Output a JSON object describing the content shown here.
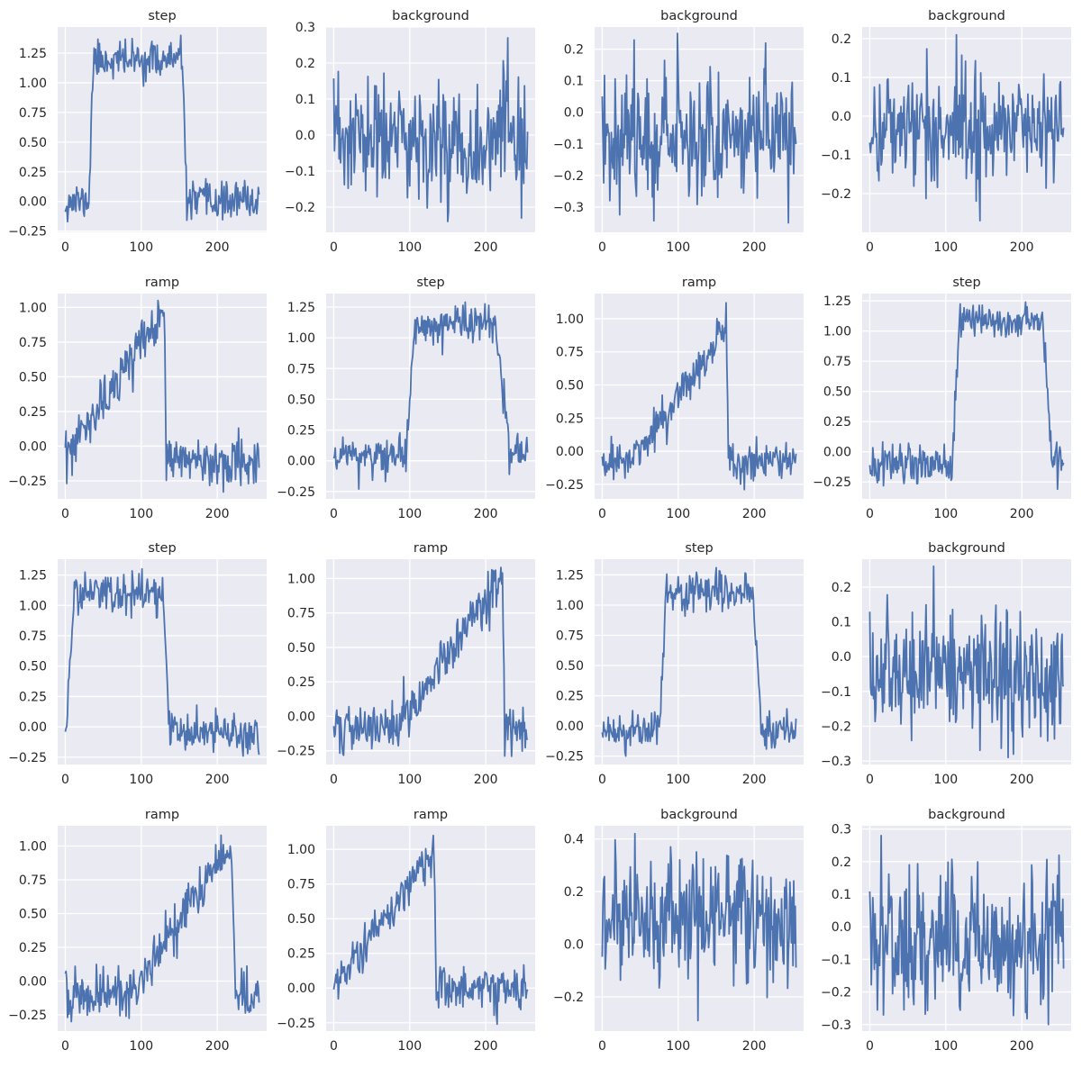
{
  "figure": {
    "style": "seaborn-darkgrid",
    "rows": 4,
    "cols": 4,
    "line_color": "#4c72b0",
    "face_color": "#eaeaf2",
    "grid_color": "#ffffff"
  },
  "chart_data": [
    {
      "type": "line",
      "title": "step",
      "kind": "step",
      "n": 256,
      "ymin": -0.17,
      "ymax": 1.4,
      "seed": 11,
      "params": {
        "noise": 0.065,
        "start": 31,
        "end": 160,
        "w0": 6,
        "w1": 6
      },
      "xlim": [
        -10,
        265
      ],
      "ylim": [
        -0.26,
        1.47
      ],
      "xticks": [
        0,
        100,
        200
      ],
      "xtick_labels": [
        "0",
        "100",
        "200"
      ],
      "yticks": [
        -0.25,
        0,
        0.25,
        0.5,
        0.75,
        1.0,
        1.25
      ],
      "ytick_labels": [
        "−0.25",
        "0.00",
        "0.25",
        "0.50",
        "0.75",
        "1.00",
        "1.25"
      ]
    },
    {
      "type": "line",
      "title": "background",
      "kind": "background",
      "n": 256,
      "ymin": -0.24,
      "ymax": 0.27,
      "seed": 23,
      "params": {
        "noise": 0.09
      },
      "xlim": [
        -10,
        265
      ],
      "ylim": [
        -0.27,
        0.3
      ],
      "xticks": [
        0,
        100,
        200
      ],
      "xtick_labels": [
        "0",
        "100",
        "200"
      ],
      "yticks": [
        -0.2,
        -0.1,
        0,
        0.1,
        0.2,
        0.3
      ],
      "ytick_labels": [
        "−0.2",
        "−0.1",
        "0.0",
        "0.1",
        "0.2",
        "0.3"
      ]
    },
    {
      "type": "line",
      "title": "background",
      "kind": "background",
      "n": 256,
      "ymin": -0.35,
      "ymax": 0.25,
      "seed": 37,
      "params": {
        "noise": 0.095
      },
      "xlim": [
        -10,
        265
      ],
      "ylim": [
        -0.38,
        0.27
      ],
      "xticks": [
        0,
        100,
        200
      ],
      "xtick_labels": [
        "0",
        "100",
        "200"
      ],
      "yticks": [
        -0.3,
        -0.2,
        -0.1,
        0,
        0.1,
        0.2
      ],
      "ytick_labels": [
        "−0.3",
        "−0.2",
        "−0.1",
        "0.0",
        "0.1",
        "0.2"
      ]
    },
    {
      "type": "line",
      "title": "background",
      "kind": "background",
      "n": 256,
      "ymin": -0.27,
      "ymax": 0.21,
      "seed": 41,
      "params": {
        "noise": 0.09
      },
      "xlim": [
        -10,
        265
      ],
      "ylim": [
        -0.3,
        0.23
      ],
      "xticks": [
        0,
        100,
        200
      ],
      "xtick_labels": [
        "0",
        "100",
        "200"
      ],
      "yticks": [
        -0.2,
        -0.1,
        0,
        0.1,
        0.2
      ],
      "ytick_labels": [
        "−0.2",
        "−0.1",
        "0.0",
        "0.1",
        "0.2"
      ]
    },
    {
      "type": "line",
      "title": "ramp",
      "kind": "ramp",
      "n": 256,
      "ymin": -0.33,
      "ymax": 1.05,
      "seed": 53,
      "params": {
        "noise": 0.08,
        "start": 0,
        "end": 130,
        "drop": 3
      },
      "xlim": [
        -10,
        265
      ],
      "ylim": [
        -0.38,
        1.1
      ],
      "xticks": [
        0,
        100,
        200
      ],
      "xtick_labels": [
        "0",
        "100",
        "200"
      ],
      "yticks": [
        -0.25,
        0,
        0.25,
        0.5,
        0.75,
        1.0
      ],
      "ytick_labels": [
        "−0.25",
        "0.00",
        "0.25",
        "0.50",
        "0.75",
        "1.00"
      ]
    },
    {
      "type": "line",
      "title": "step",
      "kind": "step",
      "n": 256,
      "ymin": -0.23,
      "ymax": 1.29,
      "seed": 61,
      "params": {
        "noise": 0.075,
        "start": 95,
        "end": 232,
        "w0": 12,
        "w1": 20
      },
      "xlim": [
        -10,
        265
      ],
      "ylim": [
        -0.31,
        1.36
      ],
      "xticks": [
        0,
        100,
        200
      ],
      "xtick_labels": [
        "0",
        "100",
        "200"
      ],
      "yticks": [
        -0.25,
        0,
        0.25,
        0.5,
        0.75,
        1.0,
        1.25
      ],
      "ytick_labels": [
        "−0.25",
        "0.00",
        "0.25",
        "0.50",
        "0.75",
        "1.00",
        "1.25"
      ]
    },
    {
      "type": "line",
      "title": "ramp",
      "kind": "ramp",
      "n": 256,
      "ymin": -0.29,
      "ymax": 1.12,
      "seed": 71,
      "params": {
        "noise": 0.08,
        "start": 40,
        "end": 163,
        "drop": 3
      },
      "xlim": [
        -10,
        265
      ],
      "ylim": [
        -0.36,
        1.19
      ],
      "xticks": [
        0,
        100,
        200
      ],
      "xtick_labels": [
        "0",
        "100",
        "200"
      ],
      "yticks": [
        -0.25,
        0,
        0.25,
        0.5,
        0.75,
        1.0
      ],
      "ytick_labels": [
        "−0.25",
        "0.00",
        "0.25",
        "0.50",
        "0.75",
        "1.00"
      ]
    },
    {
      "type": "line",
      "title": "step",
      "kind": "step",
      "n": 256,
      "ymin": -0.31,
      "ymax": 1.24,
      "seed": 83,
      "params": {
        "noise": 0.07,
        "start": 108,
        "end": 240,
        "w0": 10,
        "w1": 12
      },
      "xlim": [
        -10,
        265
      ],
      "ylim": [
        -0.39,
        1.31
      ],
      "xticks": [
        0,
        100,
        200
      ],
      "xtick_labels": [
        "0",
        "100",
        "200"
      ],
      "yticks": [
        -0.25,
        0,
        0.25,
        0.5,
        0.75,
        1.0,
        1.25
      ],
      "ytick_labels": [
        "−0.25",
        "0.00",
        "0.25",
        "0.50",
        "0.75",
        "1.00",
        "1.25"
      ]
    },
    {
      "type": "line",
      "title": "step",
      "kind": "step",
      "n": 256,
      "ymin": -0.24,
      "ymax": 1.3,
      "seed": 97,
      "params": {
        "noise": 0.075,
        "start": 0,
        "end": 138,
        "w0": 12,
        "w1": 10
      },
      "xlim": [
        -10,
        265
      ],
      "ylim": [
        -0.31,
        1.38
      ],
      "xticks": [
        0,
        100,
        200
      ],
      "xtick_labels": [
        "0",
        "100",
        "200"
      ],
      "yticks": [
        -0.25,
        0,
        0.25,
        0.5,
        0.75,
        1.0,
        1.25
      ],
      "ytick_labels": [
        "−0.25",
        "0.00",
        "0.25",
        "0.50",
        "0.75",
        "1.00",
        "1.25"
      ]
    },
    {
      "type": "line",
      "title": "ramp",
      "kind": "ramp",
      "n": 256,
      "ymin": -0.29,
      "ymax": 1.08,
      "seed": 101,
      "params": {
        "noise": 0.08,
        "start": 80,
        "end": 222,
        "drop": 3
      },
      "xlim": [
        -10,
        265
      ],
      "ylim": [
        -0.35,
        1.14
      ],
      "xticks": [
        0,
        100,
        200
      ],
      "xtick_labels": [
        "0",
        "100",
        "200"
      ],
      "yticks": [
        -0.25,
        0,
        0.25,
        0.5,
        0.75,
        1.0
      ],
      "ytick_labels": [
        "−0.25",
        "0.00",
        "0.25",
        "0.50",
        "0.75",
        "1.00"
      ]
    },
    {
      "type": "line",
      "title": "step",
      "kind": "step",
      "n": 256,
      "ymin": -0.25,
      "ymax": 1.31,
      "seed": 113,
      "params": {
        "noise": 0.07,
        "start": 75,
        "end": 210,
        "w0": 10,
        "w1": 12
      },
      "xlim": [
        -10,
        265
      ],
      "ylim": [
        -0.32,
        1.38
      ],
      "xticks": [
        0,
        100,
        200
      ],
      "xtick_labels": [
        "0",
        "100",
        "200"
      ],
      "yticks": [
        -0.25,
        0,
        0.25,
        0.5,
        0.75,
        1.0,
        1.25
      ],
      "ytick_labels": [
        "−0.25",
        "0.00",
        "0.25",
        "0.50",
        "0.75",
        "1.00",
        "1.25"
      ]
    },
    {
      "type": "line",
      "title": "background",
      "kind": "background",
      "n": 256,
      "ymin": -0.29,
      "ymax": 0.26,
      "seed": 127,
      "params": {
        "noise": 0.095
      },
      "xlim": [
        -10,
        265
      ],
      "ylim": [
        -0.31,
        0.28
      ],
      "xticks": [
        0,
        100,
        200
      ],
      "xtick_labels": [
        "0",
        "100",
        "200"
      ],
      "yticks": [
        -0.3,
        -0.2,
        -0.1,
        0,
        0.1,
        0.2
      ],
      "ytick_labels": [
        "−0.3",
        "−0.2",
        "−0.1",
        "0.0",
        "0.1",
        "0.2"
      ]
    },
    {
      "type": "line",
      "title": "ramp",
      "kind": "ramp",
      "n": 256,
      "ymin": -0.3,
      "ymax": 1.08,
      "seed": 131,
      "params": {
        "noise": 0.08,
        "start": 85,
        "end": 218,
        "drop": 6
      },
      "xlim": [
        -10,
        265
      ],
      "ylim": [
        -0.37,
        1.15
      ],
      "xticks": [
        0,
        100,
        200
      ],
      "xtick_labels": [
        "0",
        "100",
        "200"
      ],
      "yticks": [
        -0.25,
        0,
        0.25,
        0.5,
        0.75,
        1.0
      ],
      "ytick_labels": [
        "−0.25",
        "0.00",
        "0.25",
        "0.50",
        "0.75",
        "1.00"
      ]
    },
    {
      "type": "line",
      "title": "ramp",
      "kind": "ramp",
      "n": 256,
      "ymin": -0.26,
      "ymax": 1.1,
      "seed": 139,
      "params": {
        "noise": 0.08,
        "start": 0,
        "end": 132,
        "drop": 3
      },
      "xlim": [
        -10,
        265
      ],
      "ylim": [
        -0.31,
        1.17
      ],
      "xticks": [
        0,
        100,
        200
      ],
      "xtick_labels": [
        "0",
        "100",
        "200"
      ],
      "yticks": [
        -0.25,
        0,
        0.25,
        0.5,
        0.75,
        1.0
      ],
      "ytick_labels": [
        "−0.25",
        "0.00",
        "0.25",
        "0.50",
        "0.75",
        "1.00"
      ]
    },
    {
      "type": "line",
      "title": "background",
      "kind": "background",
      "n": 256,
      "ymin": -0.29,
      "ymax": 0.42,
      "seed": 149,
      "params": {
        "noise": 0.1
      },
      "xlim": [
        -10,
        265
      ],
      "ylim": [
        -0.33,
        0.45
      ],
      "xticks": [
        0,
        100,
        200
      ],
      "xtick_labels": [
        "0",
        "100",
        "200"
      ],
      "yticks": [
        -0.2,
        0,
        0.2,
        0.4
      ],
      "ytick_labels": [
        "−0.2",
        "0.0",
        "0.2",
        "0.4"
      ]
    },
    {
      "type": "line",
      "title": "background",
      "kind": "background",
      "n": 256,
      "ymin": -0.3,
      "ymax": 0.28,
      "seed": 157,
      "params": {
        "noise": 0.1
      },
      "xlim": [
        -10,
        265
      ],
      "ylim": [
        -0.32,
        0.31
      ],
      "xticks": [
        0,
        100,
        200
      ],
      "xtick_labels": [
        "0",
        "100",
        "200"
      ],
      "yticks": [
        -0.3,
        -0.2,
        -0.1,
        0,
        0.1,
        0.2,
        0.3
      ],
      "ytick_labels": [
        "−0.3",
        "−0.2",
        "−0.1",
        "0.0",
        "0.1",
        "0.2",
        "0.3"
      ]
    }
  ]
}
